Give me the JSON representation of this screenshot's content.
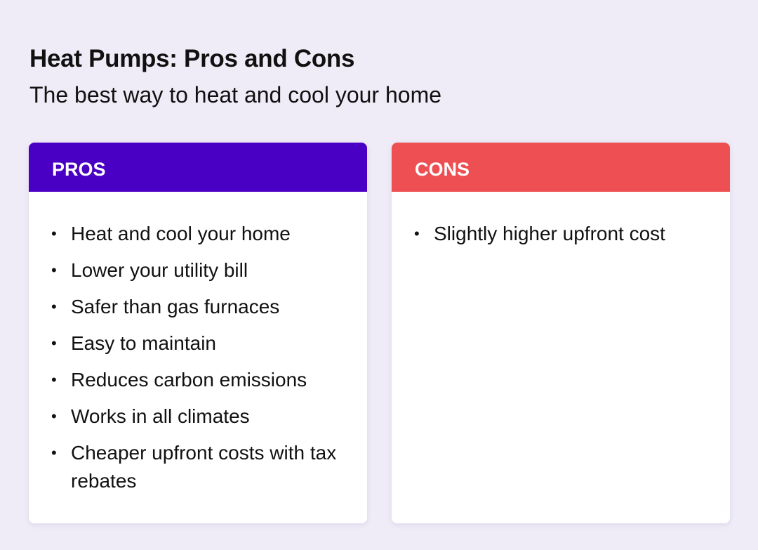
{
  "title": "Heat Pumps: Pros and Cons",
  "subtitle": "The best way to heat and cool your home",
  "colors": {
    "pros": "#4a00c4",
    "cons": "#ee4f52",
    "background": "#efecf7"
  },
  "pros": {
    "label": "PROS",
    "items": [
      "Heat and cool your home",
      "Lower your utility bill",
      "Safer than gas furnaces",
      "Easy to maintain",
      "Reduces carbon emissions",
      "Works in all climates",
      "Cheaper upfront costs with tax rebates"
    ]
  },
  "cons": {
    "label": "CONS",
    "items": [
      "Slightly higher upfront cost"
    ]
  }
}
